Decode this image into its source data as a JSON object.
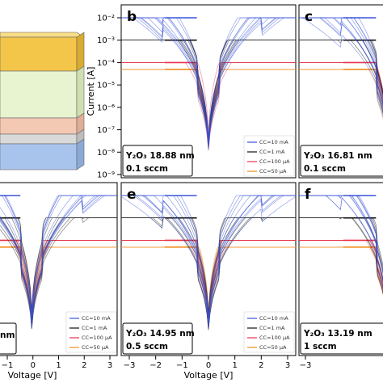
{
  "chart_data": [
    {
      "type": "line",
      "panel": "a",
      "ylabel": "",
      "xlabel": "",
      "layers": [
        {
          "color": "#f3c64a"
        },
        {
          "color": "#e8f3d0"
        },
        {
          "color": "#f4c9b3"
        },
        {
          "color": "#d9d9d9"
        },
        {
          "color": "#a9c4ec"
        }
      ]
    },
    {
      "type": "line",
      "panel": "b",
      "ylabel": "Current [A]",
      "yscale": "log",
      "ylim": [
        "1e-9",
        "1e-2"
      ],
      "xlim": [
        -3,
        3
      ],
      "yticks": [
        "10⁻²",
        "10⁻³",
        "10⁻⁴",
        "10⁻⁵",
        "10⁻⁶",
        "10⁻⁷",
        "10⁻⁸",
        "10⁻⁹"
      ],
      "info": {
        "material": "Y₂O₃ 18.88 nm",
        "flow": "0.1 sccm"
      },
      "legend": [
        "CC=10 mA",
        "CC=1 mA",
        "CC=100 μA",
        "CC=50 μA"
      ],
      "legend_position": "lower-right",
      "grid": false
    },
    {
      "type": "line",
      "panel": "c",
      "info": {
        "material": "Y₂O₃ 16.81 nm",
        "flow": "0.1 sccm"
      }
    },
    {
      "type": "line",
      "panel": "d",
      "xlabel": "Voltage [V]",
      "xticks": [
        "−1",
        "0",
        "1",
        "2",
        "3"
      ],
      "info": {
        "material": "nm",
        "flow": ""
      },
      "legend": [
        "CC=10 mA",
        "CC=1 mA",
        "CC=100 μA",
        "CC=50 μA"
      ]
    },
    {
      "type": "line",
      "panel": "e",
      "xlabel": "Voltage [V]",
      "xlim": [
        -3,
        3
      ],
      "xticks": [
        "−3",
        "−2",
        "−1",
        "0",
        "1",
        "2",
        "3"
      ],
      "info": {
        "material": "Y₂O₃ 14.95 nm",
        "flow": "0.5 sccm"
      },
      "legend": [
        "CC=10 mA",
        "CC=1 mA",
        "CC=100 μA",
        "CC=50 μA"
      ]
    },
    {
      "type": "line",
      "panel": "f",
      "xticks": [
        "−3"
      ],
      "info": {
        "material": "Y₂O₃ 13.19 nm",
        "flow": "1 sccm"
      }
    }
  ],
  "series_colors": {
    "cc_10mA": "#3a55d9",
    "cc_1mA": "#111111",
    "cc_100uA": "#e8334a",
    "cc_50uA": "#f28a1b"
  },
  "compliance_levels": {
    "cc_10mA": "1e-2",
    "cc_1mA": "1e-3",
    "cc_100uA": "1e-4",
    "cc_50uA": "5e-5"
  },
  "labels": {
    "panel_b": "b",
    "panel_c": "c",
    "panel_e": "e",
    "panel_f": "f",
    "ylabel_b": "Current [A]",
    "xlabel_d": "Voltage [V]",
    "xlabel_e": "Voltage [V]",
    "info_b_1": "Y₂O₃ 18.88 nm",
    "info_b_2": "0.1 sccm",
    "info_c_1": "Y₂O₃ 16.81 nm",
    "info_c_2": "0.1 sccm",
    "info_d_1": "nm",
    "info_e_1": "Y₂O₃ 14.95 nm",
    "info_e_2": "0.5 sccm",
    "info_f_1": "Y₂O₃ 13.19 nm",
    "info_f_2": "1 sccm",
    "legend": [
      "CC=10 mA",
      "CC=1 mA",
      "CC=100 μA",
      "CC=50 μA"
    ],
    "yticks_b": [
      "10⁻²",
      "10⁻³",
      "10⁻⁴",
      "10⁻⁵",
      "10⁻⁶",
      "10⁻⁷",
      "10⁻⁸",
      "10⁻⁹"
    ],
    "xticks_d": [
      "−1",
      "0",
      "1",
      "2",
      "3"
    ],
    "xticks_e": [
      "−3",
      "−2",
      "−1",
      "0",
      "1",
      "2",
      "3"
    ],
    "xticks_f": [
      "−3"
    ]
  }
}
